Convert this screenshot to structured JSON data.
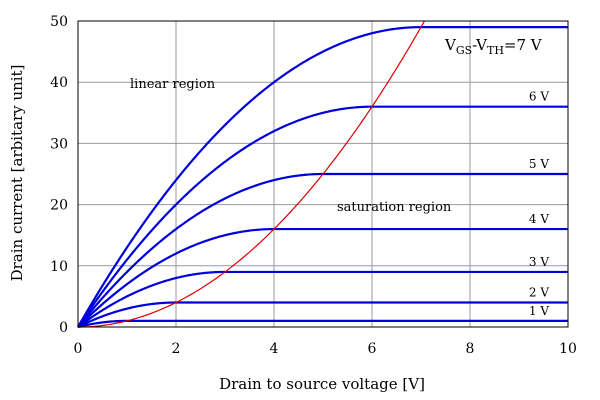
{
  "chart_data": {
    "type": "line",
    "title": "",
    "xlabel": "Drain to source voltage [V]",
    "ylabel": "Drain current [arbitary unit]",
    "xlim": [
      0,
      10
    ],
    "ylim": [
      0,
      50
    ],
    "xticks": [
      0,
      2,
      4,
      6,
      8,
      10
    ],
    "yticks": [
      0,
      10,
      20,
      30,
      40,
      50
    ],
    "grid": true,
    "series": [
      {
        "name": "1 V",
        "vov": 1,
        "color": "#0000dd"
      },
      {
        "name": "2 V",
        "vov": 2,
        "color": "#0000dd"
      },
      {
        "name": "3 V",
        "vov": 3,
        "color": "#0000dd"
      },
      {
        "name": "4 V",
        "vov": 4,
        "color": "#0000dd"
      },
      {
        "name": "5 V",
        "vov": 5,
        "color": "#0000dd"
      },
      {
        "name": "6 V",
        "vov": 6,
        "color": "#0000dd"
      },
      {
        "name": "7 V",
        "vov": 7,
        "color": "#0000dd"
      }
    ],
    "series_formula": "I = 2*vov*V - V^2 for V < vov; I = vov^2 for V >= vov",
    "boundary": {
      "name": "saturation boundary",
      "formula": "I = V^2",
      "color": "#dd0000"
    },
    "top_label": {
      "prefix": "V",
      "sub1": "GS",
      "mid": "-V",
      "sub2": "TH",
      "suffix": "=7 V"
    },
    "annotations": {
      "linear": "linear region",
      "saturation": "saturation region"
    }
  }
}
